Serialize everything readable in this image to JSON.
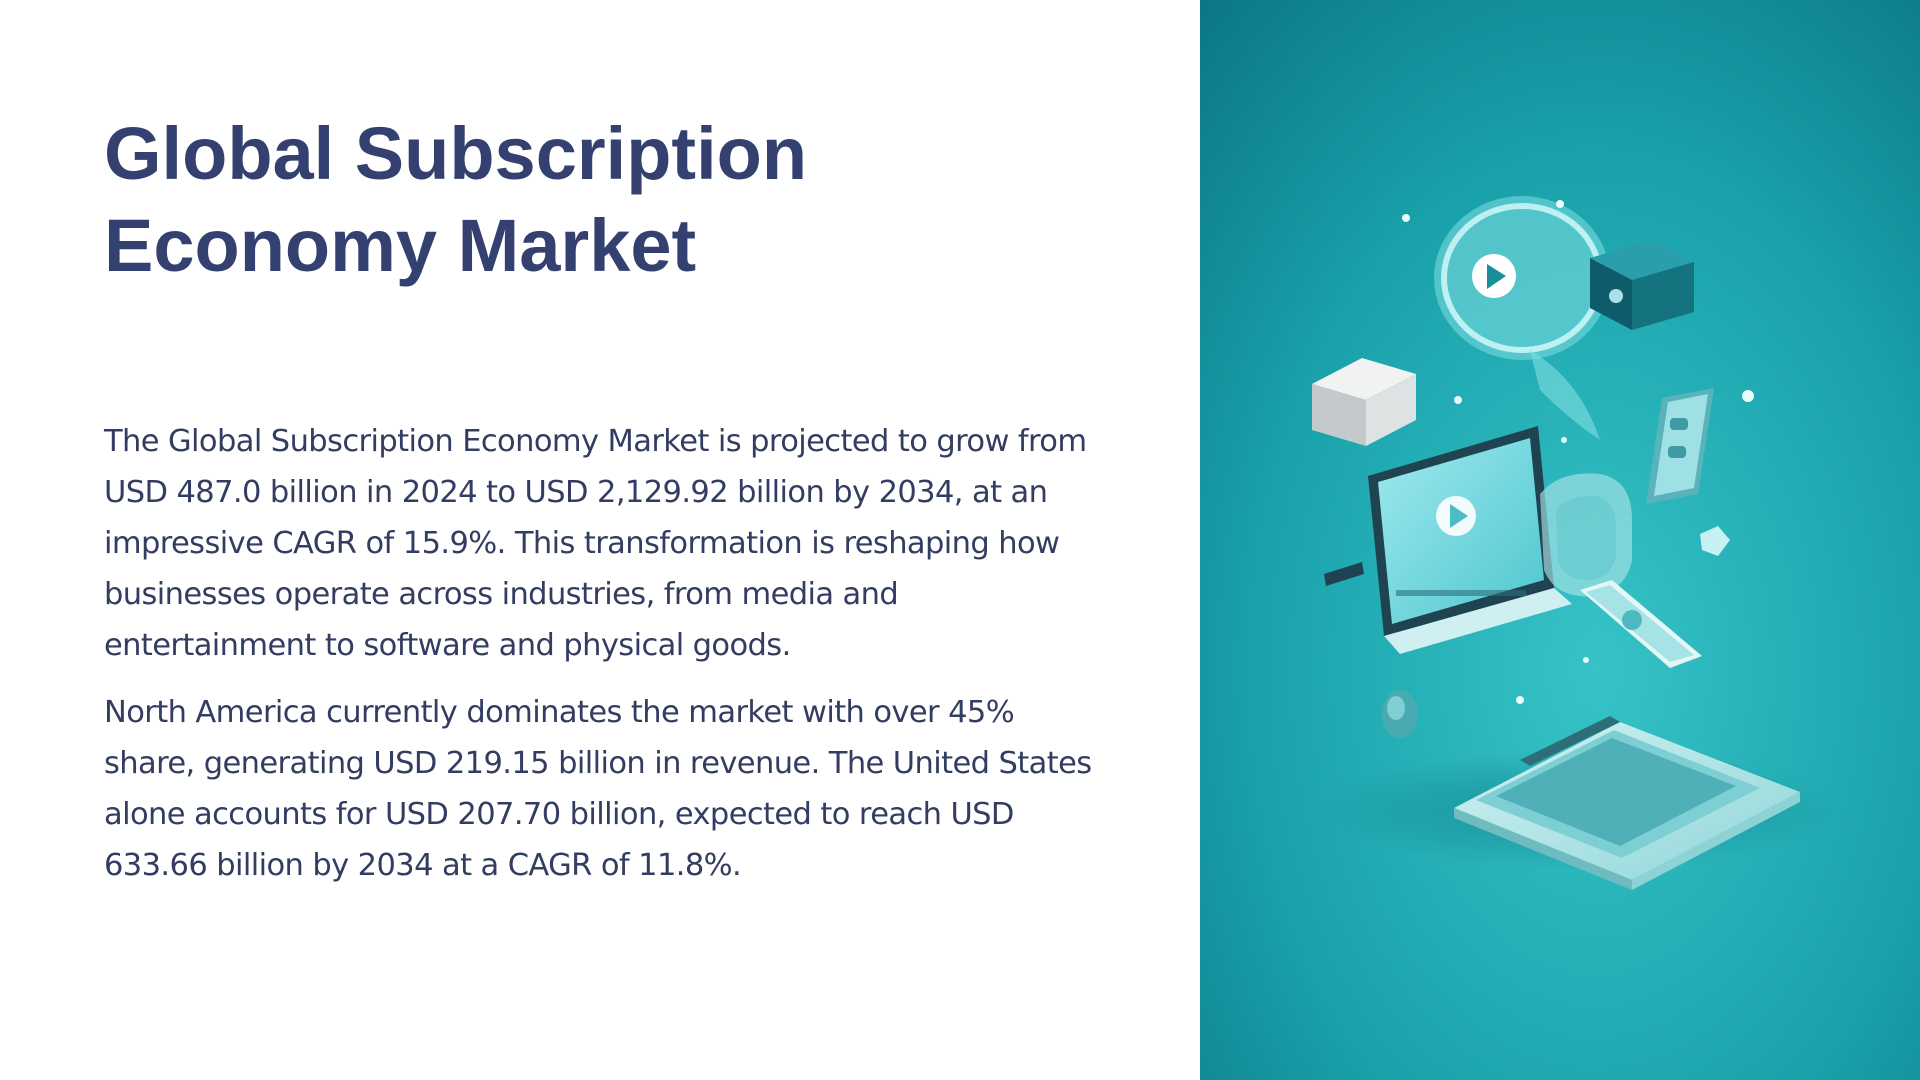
{
  "slide": {
    "title_line1": "Global Subscription",
    "title_line2": "Economy Market",
    "paragraph1": "The Global Subscription Economy Market is projected to grow from USD 487.0 billion in 2024 to USD 2,129.92 billion by 2034, at an impressive CAGR of 15.9%. This transformation is reshaping how businesses operate across industries, from media and entertainment to software and physical goods.",
    "paragraph2": "North America currently dominates the market with over 45% share, generating USD 219.15 billion in revenue. The United States alone accounts for USD 207.70 billion, expected to reach USD 633.66 billion by 2034 at a CAGR of 11.8%."
  },
  "colors": {
    "title": "#34406f",
    "body_text": "#333d62",
    "panel_teal_dark": "#0d7f8c",
    "panel_teal_light": "#33bcc0"
  }
}
